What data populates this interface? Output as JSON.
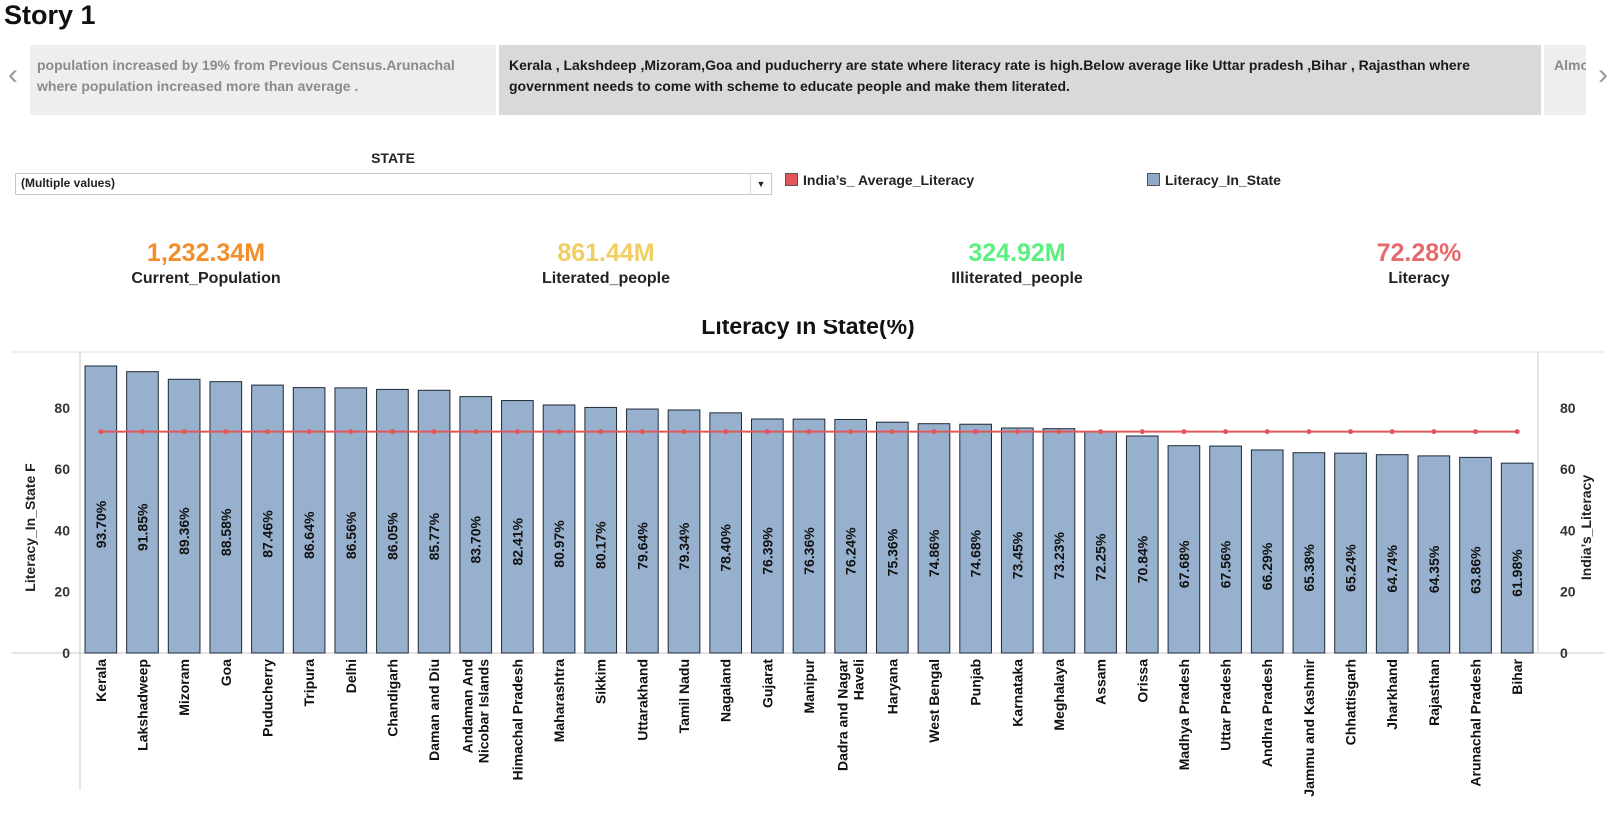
{
  "story": {
    "title": "Story 1",
    "prev_caption": "population increased by 19% from Previous Census.Arunachal where population increased more than average .",
    "current_caption": "Kerala , Lakshdeep ,Mizoram,Goa and puducherry are state where literacy rate is high.Below average like Uttar pradesh ,Bihar , Rajasthan where government needs to come with scheme to educate people and make them literated.",
    "next_caption": "Almos Area l",
    "prev_icon": "chevron-left-icon",
    "next_icon": "chevron-right-icon"
  },
  "filter": {
    "title": "STATE",
    "value": "(Multiple values)",
    "icon": "dropdown-caret-icon"
  },
  "legend": [
    {
      "label": "India’s_ Average_Literacy",
      "color": "#e15759"
    },
    {
      "label": "Literacy_In_State",
      "color": "#8fa9c8"
    }
  ],
  "kpis": [
    {
      "value": "1,232.34M",
      "label": "Current_Population",
      "color": "#f28e2b"
    },
    {
      "value": "861.44M",
      "label": "Literated_people",
      "color": "#f1ce63"
    },
    {
      "value": "324.92M",
      "label": "Illiterated_people",
      "color": "#59f07d"
    },
    {
      "value": "72.28%",
      "label": "Literacy",
      "color": "#e8696b"
    }
  ],
  "chart_data": {
    "type": "bar",
    "title": "Literacy in State(%)",
    "xlabel": "",
    "ylabel": "Literacy_In_State F",
    "y2label": "India’s_Literacy",
    "ylim": [
      0,
      95
    ],
    "yticks": [
      0,
      20,
      40,
      60,
      80
    ],
    "bar_color": "#96b0cd",
    "line_color": "#e15759",
    "categories": [
      "Kerala",
      "Lakshadweep",
      "Mizoram",
      "Goa",
      "Puducherry",
      "Tripura",
      "Delhi",
      "Chandigarh",
      "Daman and Diu",
      "Andaman And Nicobar Islands",
      "Himachal Pradesh",
      "Maharashtra",
      "Sikkim",
      "Uttarakhand",
      "Tamil Nadu",
      "Nagaland",
      "Gujarat",
      "Manipur",
      "Dadra and Nagar Haveli",
      "Haryana",
      "West Bengal",
      "Punjab",
      "Karnataka",
      "Meghalaya",
      "Assam",
      "Orissa",
      "Madhya Pradesh",
      "Uttar Pradesh",
      "Andhra Pradesh",
      "Jammu and Kashmir",
      "Chhattisgarh",
      "Jharkhand",
      "Rajasthan",
      "Arunachal Pradesh",
      "Bihar"
    ],
    "series": [
      {
        "name": "Literacy_In_State",
        "type": "bar",
        "values": [
          93.7,
          91.85,
          89.36,
          88.58,
          87.46,
          86.64,
          86.56,
          86.05,
          85.77,
          83.7,
          82.41,
          80.97,
          80.17,
          79.64,
          79.34,
          78.4,
          76.39,
          76.36,
          76.24,
          75.36,
          74.86,
          74.68,
          73.45,
          73.23,
          72.25,
          70.84,
          67.68,
          67.56,
          66.29,
          65.38,
          65.24,
          64.74,
          64.35,
          63.86,
          61.98
        ]
      },
      {
        "name": "India’s_ Average_Literacy",
        "type": "line",
        "value": 72.28
      }
    ],
    "data_labels": [
      "93.70%",
      "91.85%",
      "89.36%",
      "88.58%",
      "87.46%",
      "86.64%",
      "86.56%",
      "86.05%",
      "85.77%",
      "83.70%",
      "82.41%",
      "80.97%",
      "80.17%",
      "79.64%",
      "79.34%",
      "78.40%",
      "76.39%",
      "76.36%",
      "76.24%",
      "75.36%",
      "74.86%",
      "74.68%",
      "73.45%",
      "73.23%",
      "72.25%",
      "70.84%",
      "67.68%",
      "67.56%",
      "66.29%",
      "65.38%",
      "65.24%",
      "64.74%",
      "64.35%",
      "63.86%",
      "61.98%"
    ],
    "category_labels": [
      [
        "Kerala"
      ],
      [
        "Lakshadweep"
      ],
      [
        "Mizoram"
      ],
      [
        "Goa"
      ],
      [
        "Puducherry"
      ],
      [
        "Tripura"
      ],
      [
        "Delhi"
      ],
      [
        "Chandigarh"
      ],
      [
        "Daman and Diu"
      ],
      [
        "Andaman And",
        "Nicobar Islands"
      ],
      [
        "Himachal Pradesh"
      ],
      [
        "Maharashtra"
      ],
      [
        "Sikkim"
      ],
      [
        "Uttarakhand"
      ],
      [
        "Tamil Nadu"
      ],
      [
        "Nagaland"
      ],
      [
        "Gujarat"
      ],
      [
        "Manipur"
      ],
      [
        "Dadra and Nagar",
        "Haveli"
      ],
      [
        "Haryana"
      ],
      [
        "West Bengal"
      ],
      [
        "Punjab"
      ],
      [
        "Karnataka"
      ],
      [
        "Meghalaya"
      ],
      [
        "Assam"
      ],
      [
        "Orissa"
      ],
      [
        "Madhya Pradesh"
      ],
      [
        "Uttar Pradesh"
      ],
      [
        "Andhra Pradesh"
      ],
      [
        "Jammu and Kashmir"
      ],
      [
        "Chhattisgarh"
      ],
      [
        "Jharkhand"
      ],
      [
        "Rajasthan"
      ],
      [
        "Arunachal Pradesh"
      ],
      [
        "Bihar"
      ]
    ]
  }
}
